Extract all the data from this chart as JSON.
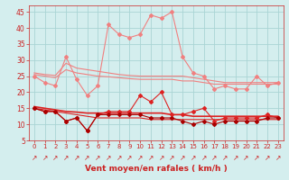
{
  "x": [
    0,
    1,
    2,
    3,
    4,
    5,
    6,
    7,
    8,
    9,
    10,
    11,
    12,
    13,
    14,
    15,
    16,
    17,
    18,
    19,
    20,
    21,
    22,
    23
  ],
  "series": [
    {
      "name": "rafales_peak",
      "y": [
        25,
        23,
        22,
        31,
        24,
        19,
        22,
        41,
        38,
        37,
        38,
        44,
        43,
        45,
        31,
        26,
        25,
        21,
        22,
        21,
        21,
        25,
        22,
        23
      ],
      "color": "#f08080",
      "lw": 0.8,
      "marker": "D",
      "ms": 2.0,
      "zorder": 3
    },
    {
      "name": "trend_high1",
      "y": [
        26,
        25.5,
        25.2,
        29,
        27.5,
        27,
        26.5,
        26,
        25.5,
        25.2,
        25,
        25,
        25,
        25,
        25,
        24.5,
        24,
        23.5,
        23,
        23,
        23,
        23,
        23,
        23
      ],
      "color": "#f08080",
      "lw": 0.8,
      "marker": null,
      "ms": 0,
      "zorder": 2
    },
    {
      "name": "trend_high2",
      "y": [
        25.5,
        25,
        24.5,
        27,
        26,
        25.5,
        25,
        24.8,
        24.5,
        24.2,
        24,
        24,
        24,
        24,
        23.5,
        23.5,
        23,
        22.5,
        22.5,
        22.5,
        22.5,
        22.5,
        22.5,
        22.5
      ],
      "color": "#f08080",
      "lw": 0.8,
      "marker": null,
      "ms": 0,
      "zorder": 2
    },
    {
      "name": "vent_moyen_marked",
      "y": [
        15,
        14,
        14,
        11,
        12,
        8,
        13,
        14,
        14,
        14,
        19,
        17,
        20,
        13,
        13,
        14,
        15,
        11,
        12,
        12,
        12,
        12,
        13,
        12
      ],
      "color": "#dd2222",
      "lw": 0.8,
      "marker": "D",
      "ms": 2.0,
      "zorder": 3
    },
    {
      "name": "trend_mid1",
      "y": [
        15.5,
        15,
        14.5,
        14,
        13.8,
        13.5,
        13.5,
        13.5,
        13.5,
        13.5,
        13.5,
        13.5,
        13.5,
        13,
        13,
        12.5,
        12.5,
        12.5,
        12.5,
        12.5,
        12.5,
        12.5,
        12.5,
        12.5
      ],
      "color": "#dd2222",
      "lw": 1.2,
      "marker": null,
      "ms": 0,
      "zorder": 2
    },
    {
      "name": "trend_mid2",
      "y": [
        15,
        14.5,
        14,
        13.5,
        13,
        12.5,
        12,
        12,
        12,
        12,
        12,
        11.5,
        11.5,
        11.5,
        11.5,
        11.5,
        11.5,
        11.5,
        11.5,
        11.5,
        11.5,
        11.5,
        11.5,
        11.5
      ],
      "color": "#dd2222",
      "lw": 0.8,
      "marker": null,
      "ms": 0,
      "zorder": 2
    },
    {
      "name": "vent_low",
      "y": [
        15,
        14,
        14,
        11,
        12,
        8,
        13,
        13,
        13,
        13,
        13,
        12,
        12,
        12,
        11,
        10,
        11,
        10,
        11,
        11,
        11,
        11,
        12,
        12
      ],
      "color": "#aa0000",
      "lw": 0.8,
      "marker": "D",
      "ms": 2.0,
      "zorder": 3
    }
  ],
  "arrow_char": "↗",
  "xlabel": "Vent moyen/en rafales ( km/h )",
  "xlim": [
    -0.5,
    23.5
  ],
  "ylim": [
    5,
    47
  ],
  "yticks": [
    5,
    10,
    15,
    20,
    25,
    30,
    35,
    40,
    45
  ],
  "xticks": [
    0,
    1,
    2,
    3,
    4,
    5,
    6,
    7,
    8,
    9,
    10,
    11,
    12,
    13,
    14,
    15,
    16,
    17,
    18,
    19,
    20,
    21,
    22,
    23
  ],
  "bg_color": "#d4eeee",
  "grid_color": "#aad4d4",
  "tick_color": "#cc2222",
  "label_color": "#cc2222"
}
